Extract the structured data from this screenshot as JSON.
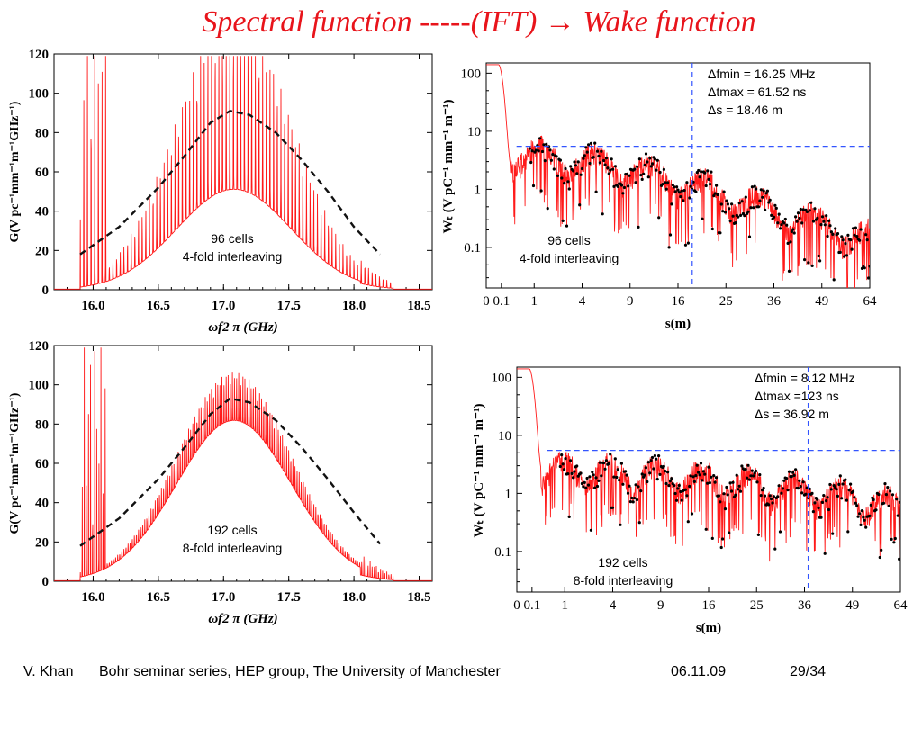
{
  "slide": {
    "title_left": "Spectral function -----(IFT)",
    "title_arrow": "→",
    "title_right": "Wake function",
    "title_color": "#e8141b"
  },
  "footer": {
    "author": "V. Khan",
    "affiliation": "Bohr seminar series,  HEP group, The University of Manchester",
    "date": "06.11.09",
    "page": "29/34"
  },
  "chart_data": [
    {
      "id": "spectral-96",
      "type": "line",
      "xlabel": "ωf2 π (GHz)",
      "ylabel": "G(V pc⁻¹mm⁻¹m⁻¹GHz⁻¹)",
      "xlim": [
        15.7,
        18.6
      ],
      "ylim": [
        0,
        120
      ],
      "xticks": [
        "16.0",
        "16.5",
        "17.0",
        "17.5",
        "18.0",
        "18.5"
      ],
      "yticks": [
        "0",
        "20",
        "40",
        "60",
        "80",
        "100",
        "120"
      ],
      "annotation": [
        "96 cells",
        "4-fold interleaving"
      ],
      "series": [
        {
          "style": "red-line",
          "color": "#ff1a1a",
          "x_range": [
            15.7,
            18.6
          ],
          "n_points": 1700
        },
        {
          "style": "black-dashed",
          "color": "#111111",
          "x": [
            15.9,
            16.2,
            16.5,
            16.7,
            16.9,
            17.05,
            17.2,
            17.4,
            17.6,
            17.8,
            18.0,
            18.2
          ],
          "values": [
            18,
            32,
            52,
            68,
            85,
            91,
            89,
            80,
            66,
            50,
            32,
            18
          ]
        }
      ]
    },
    {
      "id": "wake-96",
      "type": "line",
      "xlabel": "s(m)",
      "ylabel": "Wₜ (V pC⁻¹ mm⁻¹ m⁻¹)",
      "xscale": "sqrt",
      "yscale": "log",
      "xlim": [
        0,
        64
      ],
      "ylim": [
        0.02,
        150
      ],
      "xticks": [
        "0",
        "0.1",
        "1",
        "4",
        "9",
        "16",
        "25",
        "36",
        "49",
        "64"
      ],
      "yticks": [
        "100",
        "10",
        "1",
        "0.1"
      ],
      "vline_x": 18.46,
      "hline_y": 5.5,
      "notes": [
        "Δfmin = 16.25 MHz",
        "Δtmax = 61.52 ns",
        "Δs = 18.46 m"
      ],
      "annotation": [
        "96 cells",
        "4-fold interleaving"
      ]
    },
    {
      "id": "spectral-192",
      "type": "line",
      "xlabel": "ωf2 π (GHz)",
      "ylabel": "G(V pc⁻¹mm⁻¹m⁻¹GHz⁻¹)",
      "xlim": [
        15.7,
        18.6
      ],
      "ylim": [
        0,
        120
      ],
      "xticks": [
        "16.0",
        "16.5",
        "17.0",
        "17.5",
        "18.0",
        "18.5"
      ],
      "yticks": [
        "0",
        "20",
        "40",
        "60",
        "80",
        "100",
        "120"
      ],
      "annotation": [
        "192 cells",
        "8-fold interleaving"
      ],
      "series": [
        {
          "style": "red-line",
          "color": "#ff1a1a",
          "x_range": [
            15.7,
            18.6
          ],
          "n_points": 1700
        },
        {
          "style": "black-dashed",
          "color": "#111111",
          "x": [
            15.9,
            16.2,
            16.5,
            16.7,
            16.9,
            17.05,
            17.2,
            17.4,
            17.6,
            17.8,
            18.0,
            18.2
          ],
          "values": [
            18,
            32,
            52,
            68,
            85,
            93,
            91,
            82,
            68,
            52,
            35,
            19
          ]
        }
      ]
    },
    {
      "id": "wake-192",
      "type": "line",
      "xlabel": "s(m)",
      "ylabel": "Wₜ (V pC⁻¹ mm⁻¹ m⁻¹)",
      "xscale": "sqrt",
      "yscale": "log",
      "xlim": [
        0,
        64
      ],
      "ylim": [
        0.02,
        150
      ],
      "xticks": [
        "0",
        "0.1",
        "1",
        "4",
        "9",
        "16",
        "25",
        "36",
        "49",
        "64"
      ],
      "yticks": [
        "100",
        "10",
        "1",
        "0.1"
      ],
      "vline_x": 36.92,
      "hline_y": 5.5,
      "notes": [
        "Δfmin = 8.12 MHz",
        "Δtmax =123 ns",
        "Δs = 36.92 m"
      ],
      "annotation": [
        "192 cells",
        "8-fold interleaving"
      ]
    }
  ]
}
